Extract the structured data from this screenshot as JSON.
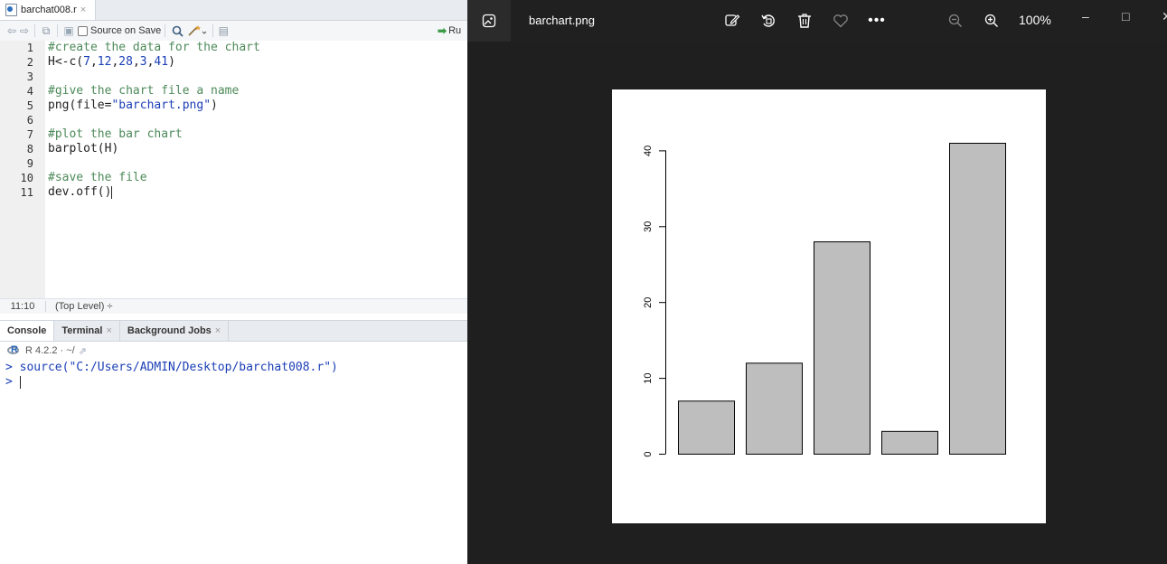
{
  "rstudio": {
    "file_tab": {
      "name": "barchat008.r",
      "close": "×"
    },
    "toolbar": {
      "source_on_save": "Source on Save",
      "run_label": "Ru"
    },
    "editor_lines": [
      {
        "n": "1",
        "parts": [
          {
            "t": "#create the data for the chart",
            "c": "comment"
          }
        ]
      },
      {
        "n": "2",
        "parts": [
          {
            "t": "H<-c(",
            "c": "plain"
          },
          {
            "t": "7",
            "c": "num"
          },
          {
            "t": ",",
            "c": "plain"
          },
          {
            "t": "12",
            "c": "num"
          },
          {
            "t": ",",
            "c": "plain"
          },
          {
            "t": "28",
            "c": "num"
          },
          {
            "t": ",",
            "c": "plain"
          },
          {
            "t": "3",
            "c": "num"
          },
          {
            "t": ",",
            "c": "plain"
          },
          {
            "t": "41",
            "c": "num"
          },
          {
            "t": ")",
            "c": "plain"
          }
        ]
      },
      {
        "n": "3",
        "parts": []
      },
      {
        "n": "4",
        "parts": [
          {
            "t": "#give the chart file a name",
            "c": "comment"
          }
        ]
      },
      {
        "n": "5",
        "parts": [
          {
            "t": "png(file=",
            "c": "plain"
          },
          {
            "t": "\"barchart.png\"",
            "c": "str"
          },
          {
            "t": ")",
            "c": "plain"
          }
        ]
      },
      {
        "n": "6",
        "parts": []
      },
      {
        "n": "7",
        "parts": [
          {
            "t": "#plot the bar chart",
            "c": "comment"
          }
        ]
      },
      {
        "n": "8",
        "parts": [
          {
            "t": "barplot(H)",
            "c": "plain"
          }
        ]
      },
      {
        "n": "9",
        "parts": []
      },
      {
        "n": "10",
        "parts": [
          {
            "t": "#save the file",
            "c": "comment"
          }
        ]
      },
      {
        "n": "11",
        "parts": [
          {
            "t": "dev.off()",
            "c": "plain"
          }
        ]
      }
    ],
    "status": {
      "position": "11:10",
      "scope": "(Top Level) ÷"
    },
    "console_tabs": [
      {
        "label": "Console",
        "closable": false,
        "active": true
      },
      {
        "label": "Terminal",
        "closable": true,
        "active": false
      },
      {
        "label": "Background Jobs",
        "closable": true,
        "active": false
      }
    ],
    "console_path": "R 4.2.2 · ~/",
    "console_lines": [
      {
        "prompt": ">",
        "text": " source(\"C:/Users/ADMIN/Desktop/barchat008.r\")"
      },
      {
        "prompt": ">",
        "text": " "
      }
    ]
  },
  "viewer": {
    "title": "barchart.png",
    "zoom": "100%",
    "icons": [
      "image-icon",
      "edit-icon",
      "rotate-icon",
      "delete-icon",
      "favorite-icon",
      "more-icon",
      "zoom-out-icon",
      "zoom-in-icon"
    ],
    "window_controls": [
      "–",
      "□",
      "✕"
    ]
  },
  "chart_data": {
    "type": "bar",
    "categories": [
      "",
      "",
      "",
      "",
      ""
    ],
    "values": [
      7,
      12,
      28,
      3,
      41
    ],
    "title": "",
    "xlabel": "",
    "ylabel": "",
    "ylim": [
      0,
      41
    ],
    "yticks": [
      0,
      10,
      20,
      30,
      40
    ],
    "bar_color": "#bebebe",
    "grid": false
  }
}
